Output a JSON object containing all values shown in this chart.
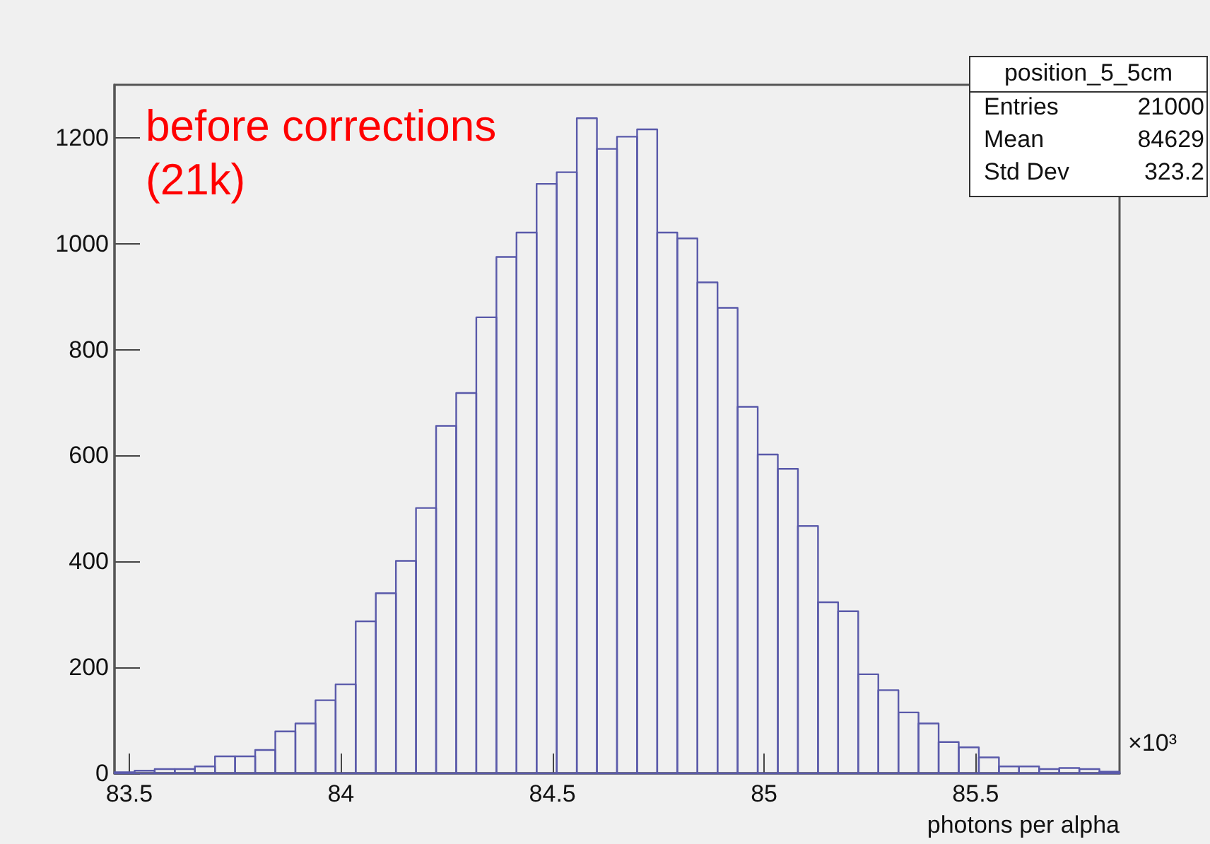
{
  "chart_data": {
    "type": "histogram",
    "title": "position_5_5cm",
    "xlabel": "photons per alpha",
    "bins": [
      83.465,
      83.5125,
      83.56,
      83.6075,
      83.655,
      83.7025,
      83.75,
      83.7975,
      83.845,
      83.8925,
      83.94,
      83.9875,
      84.035,
      84.0825,
      84.13,
      84.1775,
      84.225,
      84.2725,
      84.32,
      84.3675,
      84.415,
      84.4625,
      84.51,
      84.5575,
      84.605,
      84.6525,
      84.7,
      84.7475,
      84.795,
      84.8425,
      84.89,
      84.9375,
      84.985,
      85.0325,
      85.08,
      85.1275,
      85.175,
      85.2225,
      85.27,
      85.3175,
      85.365,
      85.4125,
      85.46,
      85.5075,
      85.555,
      85.6025,
      85.65,
      85.6975,
      85.745,
      85.7925,
      85.84
    ],
    "values": [
      2,
      5,
      8,
      8,
      13,
      32,
      32,
      44,
      79,
      94,
      138,
      168,
      287,
      340,
      401,
      501,
      656,
      718,
      861,
      975,
      1021,
      1113,
      1135,
      1237,
      1179,
      1202,
      1216,
      1021,
      1010,
      927,
      879,
      692,
      602,
      575,
      467,
      323,
      306,
      187,
      157,
      115,
      94,
      59,
      49,
      30,
      13,
      13,
      8,
      10,
      8,
      3
    ],
    "color": "#5a5aaa",
    "xlim": [
      83.465,
      85.84
    ],
    "xticks": [
      83.5,
      84,
      84.5,
      85,
      85.5
    ],
    "ylim": [
      0,
      1300
    ],
    "yticks": [
      0,
      200,
      400,
      600,
      800,
      1000,
      1200
    ],
    "grid": false,
    "annotations": [
      "before corrections\n(21k)",
      "×10³",
      "Entries",
      "21000",
      "Mean",
      "84629",
      "Std Dev",
      "323.2"
    ]
  }
}
